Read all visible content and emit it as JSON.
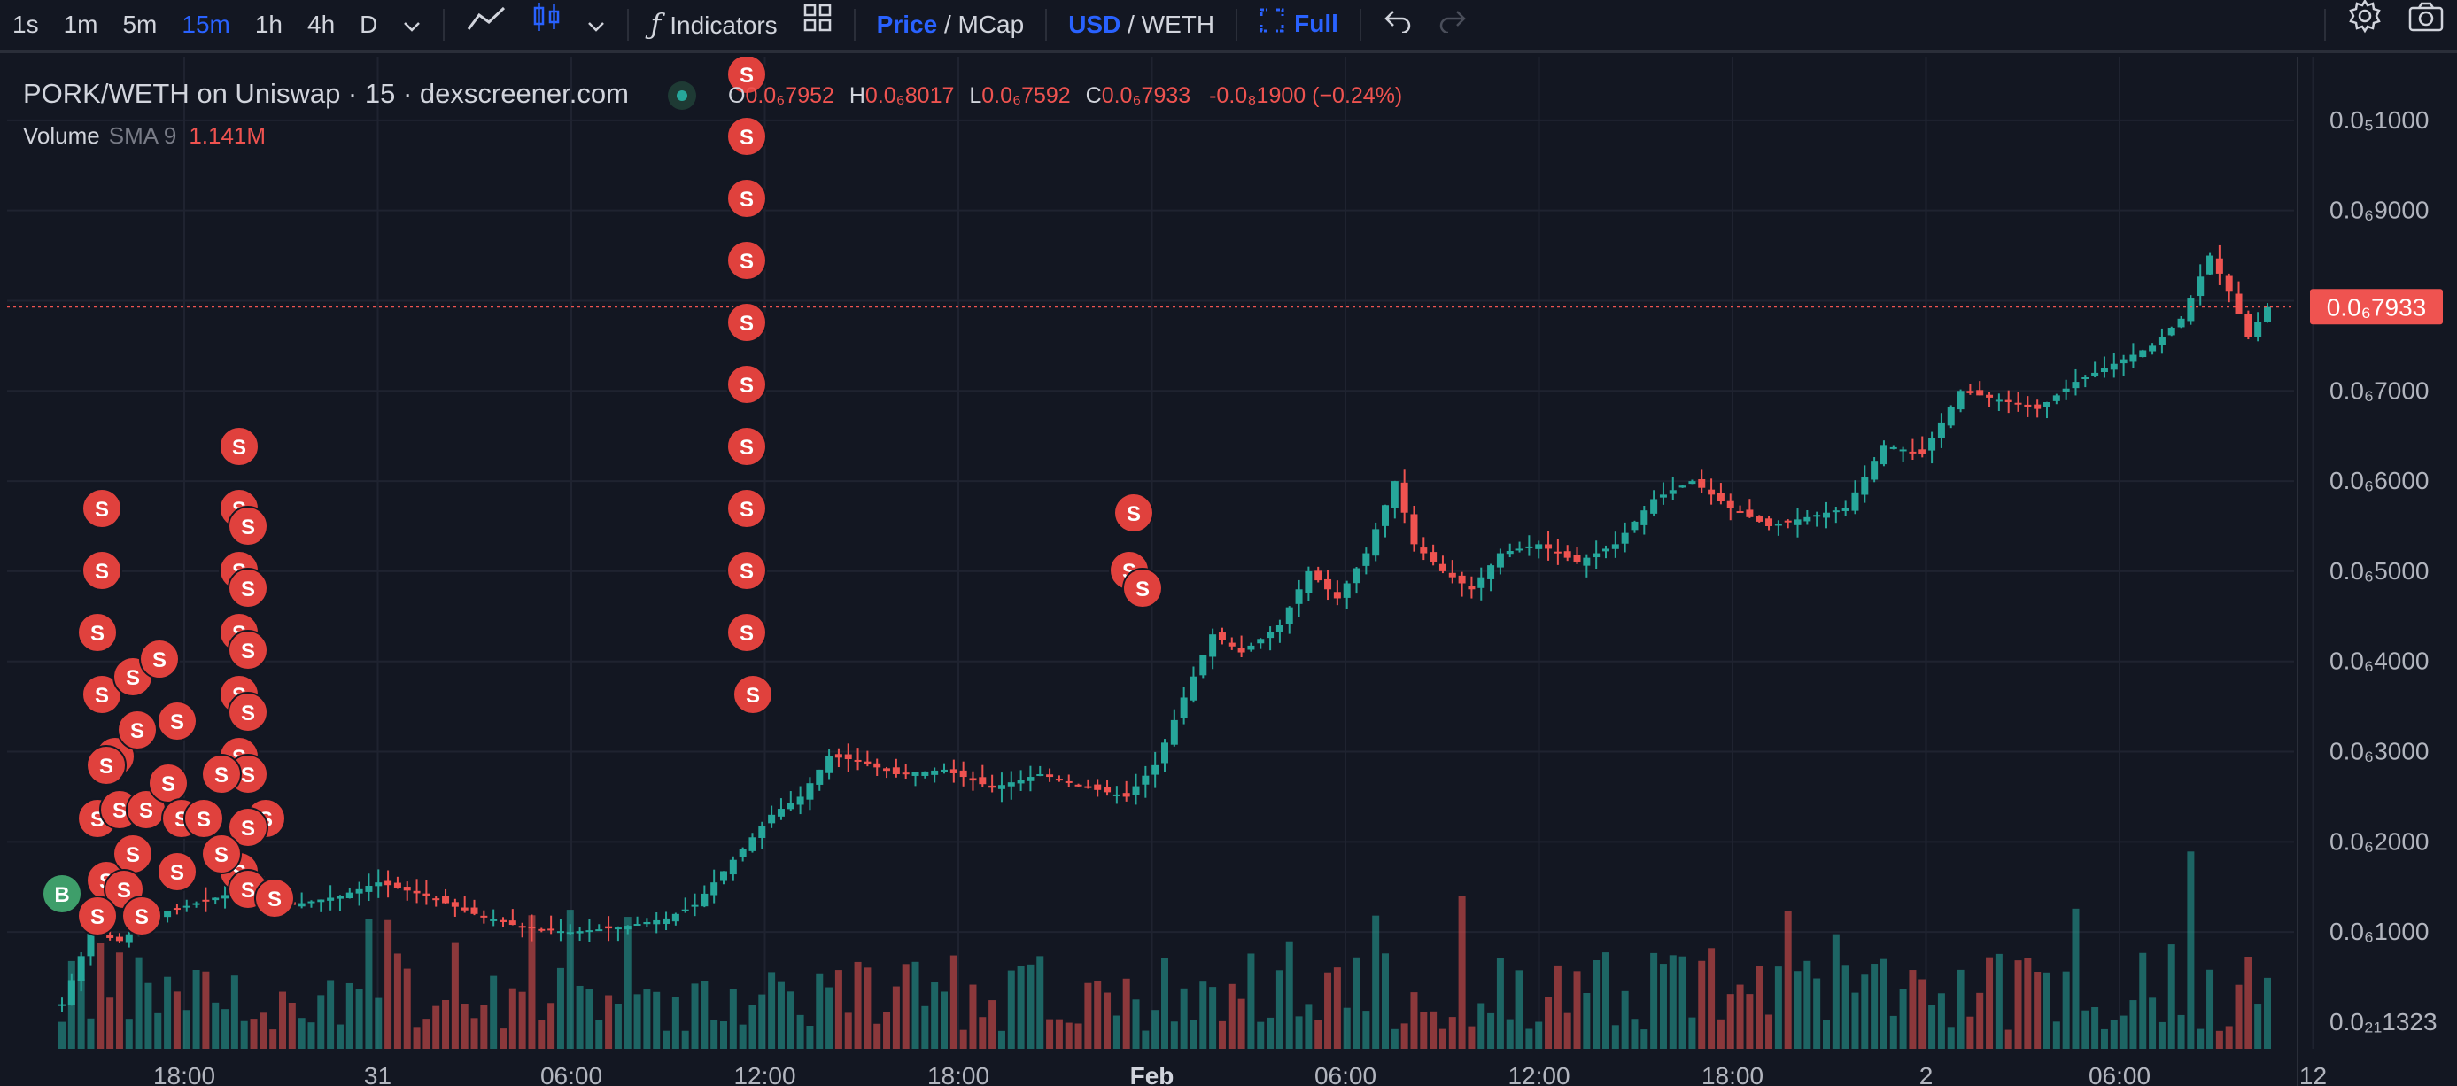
{
  "toolbar": {
    "intervals": [
      "1s",
      "1m",
      "5m",
      "15m",
      "1h",
      "4h",
      "D"
    ],
    "active_interval": "15m",
    "indicators_label": "Indicators",
    "price_label": "Price",
    "slash1": "/",
    "mcap_label": "MCap",
    "usd_label": "USD",
    "slash2": "/",
    "weth_label": "WETH",
    "full_label": "Full"
  },
  "legend": {
    "title": "PORK/WETH on Uniswap · 15 · dexscreener.com",
    "o_label": "O",
    "o_value": "0.0₆7952",
    "h_label": "H",
    "h_value": "0.0₆8017",
    "l_label": "L",
    "l_value": "0.0₆7592",
    "c_label": "C",
    "c_value": "0.0₆7933",
    "change": "-0.0₈1900 (−0.24%)",
    "volume_label": "Volume",
    "sma_label": "SMA 9",
    "volume_value": "1.141M"
  },
  "colors": {
    "up": "#26a69a",
    "down": "#ef5350",
    "background": "#131722",
    "grid": "#1f2330",
    "accent": "#2962ff"
  },
  "chart_data": {
    "type": "candlestick",
    "title": "PORK/WETH on Uniswap · 15 · dexscreener.com",
    "y_scale_unit": "1e-7 WETH",
    "y_ticks": [
      {
        "label": "0.0₆1000",
        "value": 1.0
      },
      {
        "label": "0.0₆2000",
        "value": 2.0
      },
      {
        "label": "0.0₆3000",
        "value": 3.0
      },
      {
        "label": "0.0₆4000",
        "value": 4.0
      },
      {
        "label": "0.0₆5000",
        "value": 5.0
      },
      {
        "label": "0.0₆6000",
        "value": 6.0
      },
      {
        "label": "0.0₆7000",
        "value": 7.0
      },
      {
        "label": "0.0₆9000",
        "value": 9.0
      },
      {
        "label": "0.0₅1000",
        "value": 10.0
      }
    ],
    "extra_y_label": "0.0₂₁1323",
    "ylim": [
      0.0,
      11.0
    ],
    "x_ticks": [
      "18:00",
      "31",
      "06:00",
      "12:00",
      "18:00",
      "Feb",
      "06:00",
      "12:00",
      "18:00",
      "2",
      "06:00",
      "12"
    ],
    "current_price_label": "0.0₆7933",
    "current_price": 7.933,
    "price_path": [
      [
        0,
        0.2
      ],
      [
        3,
        1.0
      ],
      [
        6,
        0.9
      ],
      [
        10,
        1.2
      ],
      [
        15,
        1.35
      ],
      [
        20,
        1.5
      ],
      [
        24,
        1.3
      ],
      [
        29,
        1.4
      ],
      [
        33,
        1.55
      ],
      [
        38,
        1.4
      ],
      [
        43,
        1.2
      ],
      [
        48,
        1.05
      ],
      [
        53,
        1.0
      ],
      [
        58,
        1.05
      ],
      [
        63,
        1.15
      ],
      [
        66,
        1.3
      ],
      [
        70,
        1.8
      ],
      [
        74,
        2.3
      ],
      [
        77,
        2.5
      ],
      [
        80,
        2.95
      ],
      [
        83,
        2.9
      ],
      [
        87,
        2.75
      ],
      [
        92,
        2.8
      ],
      [
        97,
        2.6
      ],
      [
        102,
        2.75
      ],
      [
        107,
        2.6
      ],
      [
        111,
        2.5
      ],
      [
        114,
        2.85
      ],
      [
        117,
        3.6
      ],
      [
        120,
        4.3
      ],
      [
        123,
        4.1
      ],
      [
        127,
        4.4
      ],
      [
        130,
        5.0
      ],
      [
        133,
        4.7
      ],
      [
        136,
        5.2
      ],
      [
        139,
        6.0
      ],
      [
        141,
        5.3
      ],
      [
        144,
        5.0
      ],
      [
        147,
        4.8
      ],
      [
        150,
        5.2
      ],
      [
        154,
        5.3
      ],
      [
        158,
        5.1
      ],
      [
        162,
        5.3
      ],
      [
        166,
        5.8
      ],
      [
        170,
        6.0
      ],
      [
        174,
        5.7
      ],
      [
        178,
        5.5
      ],
      [
        182,
        5.6
      ],
      [
        186,
        5.7
      ],
      [
        190,
        6.4
      ],
      [
        194,
        6.3
      ],
      [
        198,
        7.0
      ],
      [
        202,
        6.9
      ],
      [
        206,
        6.8
      ],
      [
        210,
        7.1
      ],
      [
        214,
        7.3
      ],
      [
        218,
        7.5
      ],
      [
        221,
        7.8
      ],
      [
        224,
        8.5
      ],
      [
        226,
        8.1
      ],
      [
        228,
        7.6
      ],
      [
        230,
        7.93
      ]
    ],
    "sell_markers": 65,
    "buy_markers": 1,
    "volume_sma9": "1.141M"
  }
}
